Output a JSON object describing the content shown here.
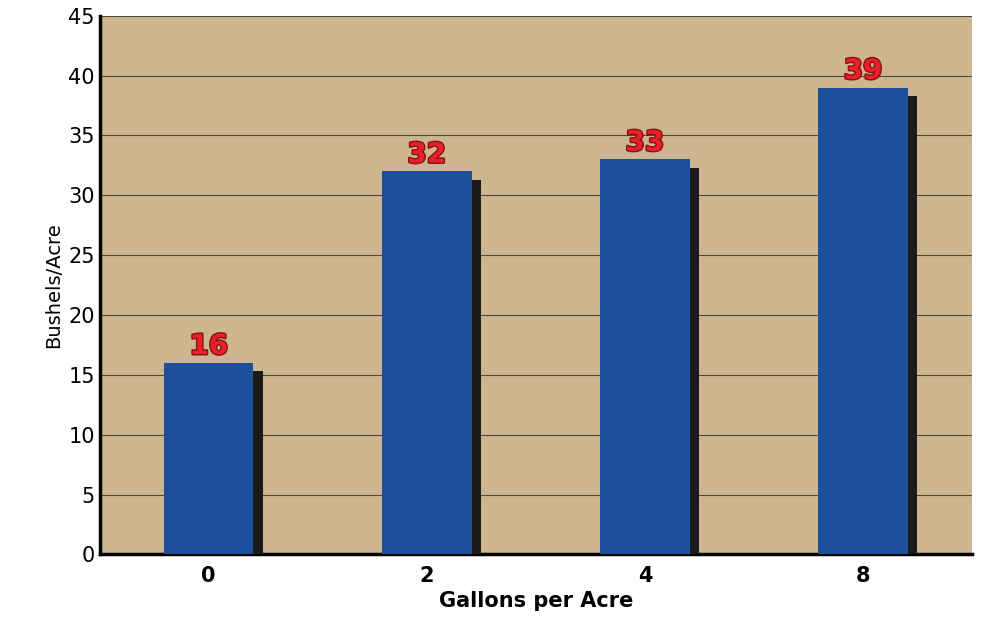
{
  "chart_data": {
    "type": "bar",
    "x_label": "Gallons per Acre",
    "y_label": "Bushels/Acre",
    "categories": [
      "0",
      "2",
      "4",
      "8"
    ],
    "values": [
      16,
      32,
      33,
      39
    ],
    "color": "#1c4f9c",
    "ylim": [
      0,
      45
    ],
    "yticks": [
      0,
      5,
      10,
      15,
      20,
      25,
      30,
      35,
      40,
      45
    ],
    "grid": true,
    "data_labels": true
  }
}
